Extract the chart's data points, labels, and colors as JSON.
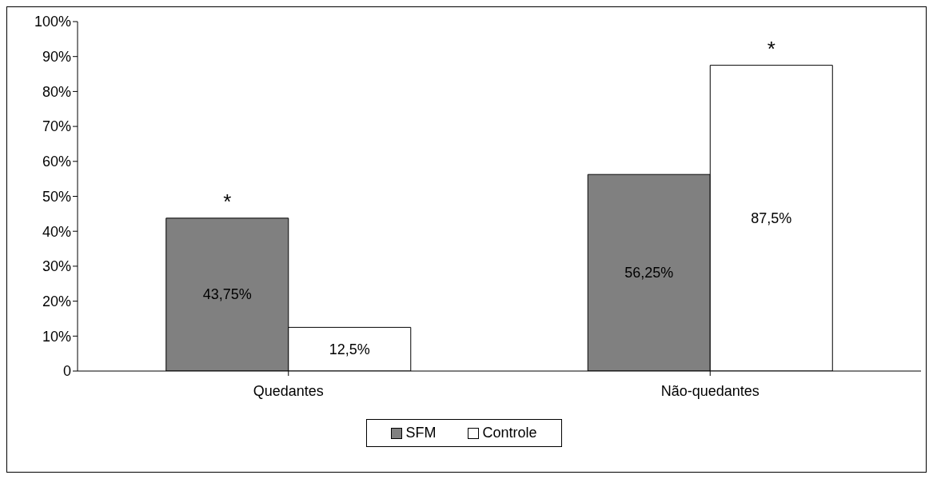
{
  "chart_data": {
    "type": "bar",
    "categories": [
      "Quedantes",
      "Não-quedantes"
    ],
    "series": [
      {
        "name": "SFM",
        "color": "#808080",
        "values": [
          43.75,
          56.25
        ],
        "value_labels": [
          "43,75%",
          "56,25%"
        ]
      },
      {
        "name": "Controle",
        "color": "#ffffff",
        "values": [
          12.5,
          87.5
        ],
        "value_labels": [
          "12,5%",
          "87,5%"
        ]
      }
    ],
    "ylim": [
      0,
      100
    ],
    "yticks": [
      0,
      {
        "value": 10,
        "label": "10%"
      },
      {
        "value": 20,
        "label": "20%"
      },
      {
        "value": 30,
        "label": "30%"
      },
      {
        "value": 40,
        "label": "40%"
      },
      {
        "value": 50,
        "label": "50%"
      },
      {
        "value": 60,
        "label": "60%"
      },
      {
        "value": 70,
        "label": "70%"
      },
      {
        "value": 80,
        "label": "80%"
      },
      {
        "value": 90,
        "label": "90%"
      },
      {
        "value": 100,
        "label": "100%"
      }
    ],
    "annotations": [
      {
        "text": "*",
        "x": "Quedantes",
        "y": 43.75
      },
      {
        "text": "*",
        "x": "Não-quedantes",
        "y": 87.5
      }
    ],
    "grid": false,
    "legend": "bottom"
  }
}
